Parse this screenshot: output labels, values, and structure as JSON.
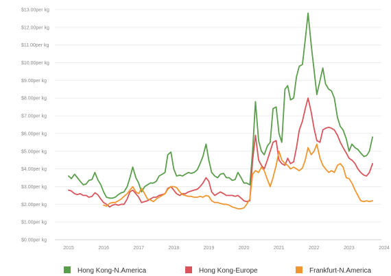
{
  "chart_data": {
    "type": "line",
    "title": "",
    "xlabel": "",
    "ylabel": "",
    "x_ticks": [
      "2015",
      "2016",
      "2017",
      "2018",
      "2019",
      "2020",
      "2021",
      "2022",
      "2023",
      "2024"
    ],
    "y_ticks": [
      "$0.00per kg",
      "$1.00per kg",
      "$2.00per kg",
      "$3.00per kg",
      "$4.00per kg",
      "$5.00per kg",
      "$6.00per kg",
      "$7.00per kg",
      "$8.00per kg",
      "$9.00per kg",
      "$10.00per kg",
      "$11.00per kg",
      "$12.00per kg",
      "$13.00per kg"
    ],
    "xlim": [
      2015,
      2024
    ],
    "ylim": [
      0,
      13
    ],
    "grid": "horizontal",
    "legend_position": "bottom",
    "series": [
      {
        "name": "Hong Kong-N.America",
        "color": "#5a9e4b",
        "points": [
          [
            2015.0,
            3.6
          ],
          [
            2015.08,
            3.45
          ],
          [
            2015.17,
            3.7
          ],
          [
            2015.25,
            3.5
          ],
          [
            2015.33,
            3.3
          ],
          [
            2015.42,
            3.1
          ],
          [
            2015.5,
            3.15
          ],
          [
            2015.58,
            3.35
          ],
          [
            2015.67,
            3.4
          ],
          [
            2015.75,
            3.8
          ],
          [
            2015.83,
            3.4
          ],
          [
            2015.92,
            3.1
          ],
          [
            2016.0,
            2.7
          ],
          [
            2016.08,
            2.4
          ],
          [
            2016.17,
            2.35
          ],
          [
            2016.25,
            2.35
          ],
          [
            2016.33,
            2.4
          ],
          [
            2016.42,
            2.55
          ],
          [
            2016.5,
            2.65
          ],
          [
            2016.58,
            2.7
          ],
          [
            2016.67,
            3.0
          ],
          [
            2016.75,
            3.5
          ],
          [
            2016.83,
            4.1
          ],
          [
            2016.92,
            3.5
          ],
          [
            2017.0,
            3.2
          ],
          [
            2017.08,
            2.7
          ],
          [
            2017.17,
            3.0
          ],
          [
            2017.25,
            3.1
          ],
          [
            2017.33,
            3.2
          ],
          [
            2017.42,
            3.2
          ],
          [
            2017.5,
            3.3
          ],
          [
            2017.58,
            3.6
          ],
          [
            2017.67,
            3.7
          ],
          [
            2017.75,
            3.8
          ],
          [
            2017.83,
            4.8
          ],
          [
            2017.92,
            4.95
          ],
          [
            2018.0,
            4.0
          ],
          [
            2018.08,
            3.6
          ],
          [
            2018.17,
            3.65
          ],
          [
            2018.25,
            3.6
          ],
          [
            2018.33,
            3.7
          ],
          [
            2018.42,
            3.8
          ],
          [
            2018.5,
            3.75
          ],
          [
            2018.58,
            3.8
          ],
          [
            2018.67,
            3.95
          ],
          [
            2018.75,
            4.3
          ],
          [
            2018.83,
            4.7
          ],
          [
            2018.92,
            5.4
          ],
          [
            2019.0,
            4.5
          ],
          [
            2019.08,
            3.8
          ],
          [
            2019.17,
            3.6
          ],
          [
            2019.25,
            3.5
          ],
          [
            2019.33,
            3.7
          ],
          [
            2019.42,
            3.75
          ],
          [
            2019.5,
            3.5
          ],
          [
            2019.58,
            3.5
          ],
          [
            2019.67,
            3.35
          ],
          [
            2019.75,
            3.4
          ],
          [
            2019.83,
            3.8
          ],
          [
            2019.92,
            3.5
          ],
          [
            2020.0,
            3.2
          ],
          [
            2020.08,
            3.2
          ],
          [
            2020.17,
            3.1
          ],
          [
            2020.25,
            5.0
          ],
          [
            2020.33,
            7.8
          ],
          [
            2020.42,
            5.6
          ],
          [
            2020.5,
            5.0
          ],
          [
            2020.58,
            4.8
          ],
          [
            2020.67,
            5.3
          ],
          [
            2020.75,
            5.5
          ],
          [
            2020.83,
            7.4
          ],
          [
            2020.92,
            7.5
          ],
          [
            2021.0,
            6.0
          ],
          [
            2021.08,
            5.5
          ],
          [
            2021.17,
            8.5
          ],
          [
            2021.25,
            8.7
          ],
          [
            2021.33,
            7.9
          ],
          [
            2021.42,
            8.0
          ],
          [
            2021.5,
            9.2
          ],
          [
            2021.58,
            9.8
          ],
          [
            2021.67,
            9.9
          ],
          [
            2021.75,
            11.3
          ],
          [
            2021.83,
            12.8
          ],
          [
            2021.92,
            11.0
          ],
          [
            2022.0,
            9.6
          ],
          [
            2022.08,
            8.2
          ],
          [
            2022.17,
            9.0
          ],
          [
            2022.25,
            9.7
          ],
          [
            2022.33,
            8.8
          ],
          [
            2022.42,
            8.5
          ],
          [
            2022.5,
            8.4
          ],
          [
            2022.58,
            8.0
          ],
          [
            2022.67,
            6.9
          ],
          [
            2022.75,
            6.4
          ],
          [
            2022.83,
            6.2
          ],
          [
            2022.92,
            5.7
          ],
          [
            2023.0,
            5.0
          ],
          [
            2023.08,
            5.4
          ],
          [
            2023.17,
            5.2
          ],
          [
            2023.25,
            5.1
          ],
          [
            2023.33,
            4.9
          ],
          [
            2023.42,
            4.7
          ],
          [
            2023.5,
            4.75
          ],
          [
            2023.58,
            5.0
          ],
          [
            2023.67,
            5.8
          ]
        ]
      },
      {
        "name": "Hong Kong-Europe",
        "color": "#d9545a",
        "points": [
          [
            2015.0,
            2.8
          ],
          [
            2015.08,
            2.75
          ],
          [
            2015.17,
            2.6
          ],
          [
            2015.25,
            2.55
          ],
          [
            2015.33,
            2.6
          ],
          [
            2015.42,
            2.5
          ],
          [
            2015.5,
            2.5
          ],
          [
            2015.58,
            2.4
          ],
          [
            2015.67,
            2.45
          ],
          [
            2015.75,
            2.65
          ],
          [
            2015.83,
            2.55
          ],
          [
            2015.92,
            2.3
          ],
          [
            2016.0,
            2.1
          ],
          [
            2016.08,
            2.0
          ],
          [
            2016.17,
            1.85
          ],
          [
            2016.25,
            1.95
          ],
          [
            2016.33,
            2.0
          ],
          [
            2016.42,
            1.95
          ],
          [
            2016.5,
            2.0
          ],
          [
            2016.58,
            2.0
          ],
          [
            2016.67,
            2.3
          ],
          [
            2016.75,
            2.7
          ],
          [
            2016.83,
            2.8
          ],
          [
            2016.92,
            2.6
          ],
          [
            2017.0,
            2.4
          ],
          [
            2017.08,
            2.1
          ],
          [
            2017.17,
            2.15
          ],
          [
            2017.25,
            2.2
          ],
          [
            2017.33,
            2.3
          ],
          [
            2017.42,
            2.4
          ],
          [
            2017.5,
            2.4
          ],
          [
            2017.58,
            2.5
          ],
          [
            2017.67,
            2.55
          ],
          [
            2017.75,
            2.6
          ],
          [
            2017.83,
            2.9
          ],
          [
            2017.92,
            3.0
          ],
          [
            2018.0,
            2.8
          ],
          [
            2018.08,
            2.6
          ],
          [
            2018.17,
            2.5
          ],
          [
            2018.25,
            2.6
          ],
          [
            2018.33,
            2.6
          ],
          [
            2018.42,
            2.7
          ],
          [
            2018.5,
            2.75
          ],
          [
            2018.58,
            2.8
          ],
          [
            2018.67,
            2.85
          ],
          [
            2018.75,
            3.0
          ],
          [
            2018.83,
            3.2
          ],
          [
            2018.92,
            3.5
          ],
          [
            2019.0,
            3.3
          ],
          [
            2019.08,
            2.7
          ],
          [
            2019.17,
            2.5
          ],
          [
            2019.25,
            2.6
          ],
          [
            2019.33,
            2.7
          ],
          [
            2019.42,
            2.6
          ],
          [
            2019.5,
            2.5
          ],
          [
            2019.58,
            2.5
          ],
          [
            2019.67,
            2.5
          ],
          [
            2019.75,
            2.45
          ],
          [
            2019.83,
            2.5
          ],
          [
            2019.92,
            2.35
          ],
          [
            2020.0,
            2.2
          ],
          [
            2020.08,
            2.15
          ],
          [
            2020.17,
            2.2
          ],
          [
            2020.25,
            4.5
          ],
          [
            2020.33,
            5.9
          ],
          [
            2020.42,
            4.5
          ],
          [
            2020.5,
            4.2
          ],
          [
            2020.58,
            4.0
          ],
          [
            2020.67,
            4.5
          ],
          [
            2020.75,
            5.0
          ],
          [
            2020.83,
            5.5
          ],
          [
            2020.92,
            5.6
          ],
          [
            2021.0,
            4.5
          ],
          [
            2021.08,
            4.3
          ],
          [
            2021.17,
            4.2
          ],
          [
            2021.25,
            4.6
          ],
          [
            2021.33,
            4.3
          ],
          [
            2021.42,
            4.4
          ],
          [
            2021.5,
            5.2
          ],
          [
            2021.58,
            6.2
          ],
          [
            2021.67,
            6.7
          ],
          [
            2021.75,
            7.4
          ],
          [
            2021.83,
            8.0
          ],
          [
            2021.92,
            7.2
          ],
          [
            2022.0,
            6.3
          ],
          [
            2022.08,
            5.6
          ],
          [
            2022.17,
            5.5
          ],
          [
            2022.25,
            6.2
          ],
          [
            2022.33,
            6.3
          ],
          [
            2022.42,
            6.35
          ],
          [
            2022.5,
            6.3
          ],
          [
            2022.58,
            6.2
          ],
          [
            2022.67,
            5.9
          ],
          [
            2022.75,
            5.5
          ],
          [
            2022.83,
            5.2
          ],
          [
            2022.92,
            4.9
          ],
          [
            2023.0,
            4.6
          ],
          [
            2023.08,
            4.5
          ],
          [
            2023.17,
            4.3
          ],
          [
            2023.25,
            4.0
          ],
          [
            2023.33,
            3.8
          ],
          [
            2023.42,
            3.65
          ],
          [
            2023.5,
            3.6
          ],
          [
            2023.58,
            3.8
          ],
          [
            2023.67,
            4.3
          ]
        ]
      },
      {
        "name": "Frankfurt-N.America",
        "color": "#f0962e",
        "points": [
          [
            2016.0,
            1.95
          ],
          [
            2016.08,
            1.9
          ],
          [
            2016.17,
            2.05
          ],
          [
            2016.25,
            2.1
          ],
          [
            2016.33,
            2.1
          ],
          [
            2016.42,
            2.2
          ],
          [
            2016.5,
            2.3
          ],
          [
            2016.58,
            2.45
          ],
          [
            2016.67,
            2.6
          ],
          [
            2016.75,
            2.8
          ],
          [
            2016.83,
            3.0
          ],
          [
            2016.92,
            2.7
          ],
          [
            2017.0,
            2.6
          ],
          [
            2017.08,
            2.9
          ],
          [
            2017.17,
            2.6
          ],
          [
            2017.25,
            2.3
          ],
          [
            2017.33,
            2.25
          ],
          [
            2017.42,
            2.15
          ],
          [
            2017.5,
            2.3
          ],
          [
            2017.58,
            2.4
          ],
          [
            2017.67,
            2.5
          ],
          [
            2017.75,
            2.6
          ],
          [
            2017.83,
            2.85
          ],
          [
            2017.92,
            3.0
          ],
          [
            2018.0,
            3.0
          ],
          [
            2018.08,
            2.95
          ],
          [
            2018.17,
            2.7
          ],
          [
            2018.25,
            2.55
          ],
          [
            2018.33,
            2.5
          ],
          [
            2018.42,
            2.45
          ],
          [
            2018.5,
            2.45
          ],
          [
            2018.58,
            2.4
          ],
          [
            2018.67,
            2.4
          ],
          [
            2018.75,
            2.45
          ],
          [
            2018.83,
            2.4
          ],
          [
            2018.92,
            2.5
          ],
          [
            2019.0,
            2.45
          ],
          [
            2019.08,
            2.2
          ],
          [
            2019.17,
            2.1
          ],
          [
            2019.25,
            2.1
          ],
          [
            2019.33,
            2.05
          ],
          [
            2019.42,
            2.0
          ],
          [
            2019.5,
            2.0
          ],
          [
            2019.58,
            1.95
          ],
          [
            2019.67,
            1.85
          ],
          [
            2019.75,
            1.8
          ],
          [
            2019.83,
            1.75
          ],
          [
            2019.92,
            1.75
          ],
          [
            2020.0,
            1.8
          ],
          [
            2020.08,
            2.0
          ],
          [
            2020.17,
            2.3
          ],
          [
            2020.25,
            3.7
          ],
          [
            2020.33,
            3.9
          ],
          [
            2020.42,
            3.8
          ],
          [
            2020.5,
            4.1
          ],
          [
            2020.58,
            3.9
          ],
          [
            2020.67,
            3.4
          ],
          [
            2020.75,
            3.0
          ],
          [
            2020.83,
            3.5
          ],
          [
            2020.92,
            4.2
          ],
          [
            2021.0,
            5.0
          ],
          [
            2021.08,
            4.5
          ],
          [
            2021.17,
            4.3
          ],
          [
            2021.25,
            4.2
          ],
          [
            2021.33,
            4.0
          ],
          [
            2021.42,
            4.1
          ],
          [
            2021.5,
            4.0
          ],
          [
            2021.58,
            3.9
          ],
          [
            2021.67,
            4.05
          ],
          [
            2021.75,
            4.5
          ],
          [
            2021.83,
            5.2
          ],
          [
            2021.92,
            4.8
          ],
          [
            2022.0,
            5.0
          ],
          [
            2022.08,
            5.4
          ],
          [
            2022.17,
            4.6
          ],
          [
            2022.25,
            4.2
          ],
          [
            2022.33,
            4.0
          ],
          [
            2022.42,
            3.8
          ],
          [
            2022.5,
            3.9
          ],
          [
            2022.58,
            3.8
          ],
          [
            2022.67,
            4.2
          ],
          [
            2022.75,
            4.3
          ],
          [
            2022.83,
            4.1
          ],
          [
            2022.92,
            3.5
          ],
          [
            2023.0,
            3.45
          ],
          [
            2023.08,
            3.2
          ],
          [
            2023.17,
            2.8
          ],
          [
            2023.25,
            2.5
          ],
          [
            2023.33,
            2.2
          ],
          [
            2023.42,
            2.15
          ],
          [
            2023.5,
            2.2
          ],
          [
            2023.58,
            2.15
          ],
          [
            2023.67,
            2.2
          ]
        ]
      }
    ]
  }
}
